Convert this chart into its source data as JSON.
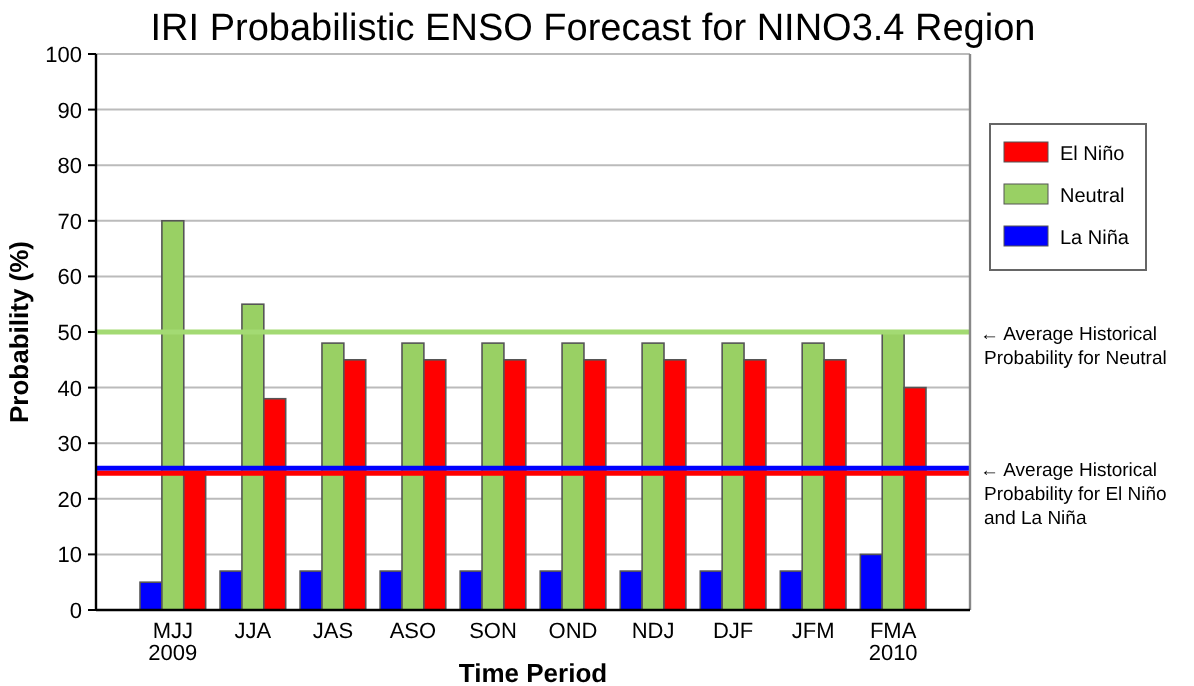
{
  "chart_data": {
    "type": "bar",
    "title": "IRI Probabilistic ENSO Forecast for NINO3.4 Region",
    "xlabel": "Time Period",
    "ylabel": "Probability (%)",
    "categories": [
      "MJJ\n2009",
      "JJA",
      "JAS",
      "ASO",
      "SON",
      "OND",
      "NDJ",
      "DJF",
      "JFM",
      "FMA\n2010"
    ],
    "series": [
      {
        "name": "La Niña",
        "color": "#0000ff",
        "values": [
          5,
          7,
          7,
          7,
          7,
          7,
          7,
          7,
          7,
          10
        ]
      },
      {
        "name": "Neutral",
        "color": "#99d064",
        "values": [
          70,
          55,
          48,
          48,
          48,
          48,
          48,
          48,
          48,
          50
        ]
      },
      {
        "name": "El Niño",
        "color": "#ff0000",
        "values": [
          25,
          38,
          45,
          45,
          45,
          45,
          45,
          45,
          45,
          40
        ]
      }
    ],
    "ylim": [
      0,
      100
    ],
    "yticks": [
      0,
      10,
      20,
      30,
      40,
      50,
      60,
      70,
      80,
      90,
      100
    ],
    "grid": "y",
    "legend": "right",
    "ref_lines": [
      {
        "axis": "y",
        "value": 50,
        "label": "← Average Historical\nProbability for Neutral",
        "color": "#a3da73"
      },
      {
        "axis": "y",
        "value": 25.5,
        "label": "← Average Historical\nProbability for El Niño\nand La Niña",
        "color": "#0000ff"
      },
      {
        "axis": "y",
        "value": 24.6,
        "label": null,
        "color": "#ff0000"
      }
    ]
  }
}
